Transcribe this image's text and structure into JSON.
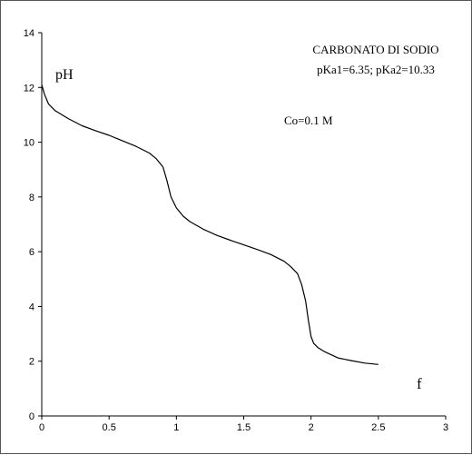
{
  "chart_data": {
    "type": "line",
    "title_lines": [
      "CARBONATO DI SODIO",
      "pKa1=6.35; pKa2=10.33"
    ],
    "annotation": "Co=0.1 M",
    "ylabel": "pH",
    "xlabel": "f",
    "xlim": [
      0,
      3
    ],
    "ylim": [
      0,
      14
    ],
    "xticks": [
      "0",
      "0.5",
      "1",
      "1.5",
      "2",
      "2.5",
      "3"
    ],
    "yticks": [
      "0",
      "2",
      "4",
      "6",
      "8",
      "10",
      "12",
      "14"
    ],
    "grid": false,
    "series": [
      {
        "color": "#000000",
        "x": [
          0.0,
          0.02,
          0.05,
          0.1,
          0.2,
          0.3,
          0.4,
          0.5,
          0.6,
          0.7,
          0.8,
          0.85,
          0.9,
          0.93,
          0.96,
          1.0,
          1.05,
          1.1,
          1.2,
          1.3,
          1.4,
          1.5,
          1.6,
          1.7,
          1.8,
          1.85,
          1.9,
          1.93,
          1.96,
          1.98,
          2.0,
          2.02,
          2.05,
          2.1,
          2.2,
          2.3,
          2.4,
          2.5
        ],
        "y": [
          12.1,
          11.75,
          11.4,
          11.15,
          10.85,
          10.6,
          10.42,
          10.25,
          10.05,
          9.85,
          9.6,
          9.4,
          9.1,
          8.6,
          8.0,
          7.6,
          7.3,
          7.1,
          6.82,
          6.6,
          6.42,
          6.25,
          6.08,
          5.9,
          5.65,
          5.45,
          5.2,
          4.8,
          4.2,
          3.5,
          2.9,
          2.65,
          2.5,
          2.35,
          2.12,
          2.02,
          1.93,
          1.88
        ]
      }
    ]
  }
}
